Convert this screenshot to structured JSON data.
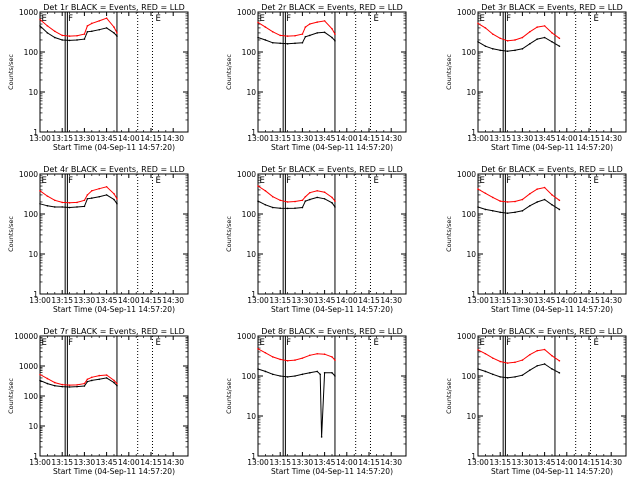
{
  "colors": {
    "events": "#000000",
    "lld": "#ff0000",
    "axis": "#000000",
    "background": "#ffffff"
  },
  "common": {
    "ylabel": "Counts/sec",
    "xlabel": "Start Time (04-Sep-11 14:57:20)",
    "xticks": [
      "13:00",
      "13:15",
      "13:30",
      "13:45",
      "14:00",
      "14:15",
      "14:30"
    ],
    "yscale": "log",
    "xlim_minutes": [
      0,
      100
    ],
    "series_names": [
      "Events",
      "LLD"
    ]
  },
  "chart_data": [
    {
      "type": "line",
      "title": "Det 1r BLACK = Events, RED = LLD",
      "ylim": [
        1,
        1000
      ],
      "yticks": [
        "1",
        "10",
        "100",
        "1000"
      ],
      "markers": {
        "solid": [
          17,
          18.5,
          52
        ],
        "dotted": [
          66,
          76
        ],
        "labels": [
          {
            "text": "E",
            "x": 1
          },
          {
            "text": "F",
            "x": 19
          },
          {
            "text": "E",
            "x": 78
          }
        ]
      },
      "series": [
        {
          "name": "Events",
          "x": [
            0,
            5,
            10,
            15,
            20,
            25,
            30,
            32,
            35,
            40,
            45,
            50,
            52
          ],
          "y": [
            450,
            300,
            230,
            200,
            195,
            200,
            210,
            320,
            330,
            360,
            400,
            300,
            250
          ]
        },
        {
          "name": "LLD",
          "x": [
            0,
            5,
            10,
            15,
            20,
            25,
            30,
            32,
            35,
            40,
            45,
            50,
            52
          ],
          "y": [
            650,
            450,
            330,
            260,
            250,
            255,
            280,
            450,
            520,
            600,
            700,
            420,
            300
          ]
        }
      ]
    },
    {
      "type": "line",
      "title": "Det 2r BLACK = Events, RED = LLD",
      "ylim": [
        1,
        1000
      ],
      "yticks": [
        "1",
        "10",
        "100",
        "1000"
      ],
      "markers": {
        "solid": [
          17,
          18.5,
          52
        ],
        "dotted": [
          66,
          76
        ],
        "labels": [
          {
            "text": "E",
            "x": 1
          },
          {
            "text": "F",
            "x": 19
          },
          {
            "text": "E",
            "x": 78
          }
        ]
      },
      "series": [
        {
          "name": "Events",
          "x": [
            0,
            5,
            10,
            15,
            20,
            25,
            30,
            32,
            35,
            40,
            45,
            50,
            52
          ],
          "y": [
            230,
            200,
            170,
            165,
            160,
            165,
            170,
            240,
            260,
            300,
            310,
            230,
            190
          ]
        },
        {
          "name": "LLD",
          "x": [
            0,
            5,
            10,
            15,
            20,
            25,
            30,
            32,
            35,
            40,
            45,
            50,
            52
          ],
          "y": [
            550,
            420,
            320,
            260,
            250,
            255,
            280,
            420,
            500,
            560,
            600,
            380,
            280
          ]
        }
      ]
    },
    {
      "type": "line",
      "title": "Det 3r BLACK = Events, RED = LLD",
      "ylim": [
        1,
        1000
      ],
      "yticks": [
        "1",
        "10",
        "100",
        "1000"
      ],
      "markers": {
        "solid": [
          17,
          18.5,
          52
        ],
        "dotted": [
          66,
          76
        ],
        "labels": [
          {
            "text": "E",
            "x": 1
          },
          {
            "text": "F",
            "x": 19
          },
          {
            "text": "E",
            "x": 78
          }
        ]
      },
      "series": [
        {
          "name": "Events",
          "x": [
            0,
            5,
            10,
            15,
            20,
            25,
            30,
            35,
            40,
            45,
            50,
            55
          ],
          "y": [
            180,
            140,
            120,
            110,
            105,
            110,
            120,
            160,
            210,
            230,
            180,
            140
          ]
        },
        {
          "name": "LLD",
          "x": [
            0,
            5,
            10,
            15,
            20,
            25,
            30,
            35,
            40,
            45,
            50,
            55
          ],
          "y": [
            520,
            400,
            280,
            220,
            190,
            200,
            230,
            320,
            420,
            450,
            300,
            220
          ]
        }
      ]
    },
    {
      "type": "line",
      "title": "Det 4r BLACK = Events, RED = LLD",
      "ylim": [
        1,
        1000
      ],
      "yticks": [
        "1",
        "10",
        "100",
        "1000"
      ],
      "markers": {
        "solid": [
          17,
          18.5,
          52
        ],
        "dotted": [
          66,
          76
        ],
        "labels": [
          {
            "text": "E",
            "x": 1
          },
          {
            "text": "F",
            "x": 19
          },
          {
            "text": "E",
            "x": 78
          }
        ]
      },
      "series": [
        {
          "name": "Events",
          "x": [
            0,
            5,
            10,
            15,
            20,
            25,
            30,
            32,
            35,
            40,
            45,
            50,
            52
          ],
          "y": [
            180,
            160,
            150,
            150,
            145,
            150,
            155,
            240,
            250,
            270,
            300,
            230,
            180
          ]
        },
        {
          "name": "LLD",
          "x": [
            0,
            5,
            10,
            15,
            20,
            25,
            30,
            32,
            35,
            40,
            45,
            50,
            52
          ],
          "y": [
            380,
            280,
            220,
            195,
            190,
            195,
            220,
            300,
            380,
            430,
            480,
            320,
            240
          ]
        }
      ]
    },
    {
      "type": "line",
      "title": "Det 5r BLACK = Events, RED = LLD",
      "ylim": [
        1,
        1000
      ],
      "yticks": [
        "1",
        "10",
        "100",
        "1000"
      ],
      "markers": {
        "solid": [
          17,
          18.5,
          52
        ],
        "dotted": [
          66,
          76
        ],
        "labels": [
          {
            "text": "E",
            "x": 1
          },
          {
            "text": "F",
            "x": 19
          },
          {
            "text": "E",
            "x": 78
          }
        ]
      },
      "series": [
        {
          "name": "Events",
          "x": [
            0,
            5,
            10,
            15,
            20,
            25,
            30,
            32,
            35,
            40,
            45,
            50,
            52
          ],
          "y": [
            210,
            170,
            145,
            140,
            138,
            140,
            145,
            210,
            230,
            260,
            240,
            190,
            150
          ]
        },
        {
          "name": "LLD",
          "x": [
            0,
            5,
            10,
            15,
            20,
            25,
            30,
            32,
            35,
            40,
            45,
            50,
            52
          ],
          "y": [
            500,
            380,
            270,
            220,
            200,
            205,
            220,
            270,
            340,
            380,
            350,
            260,
            210
          ]
        }
      ]
    },
    {
      "type": "line",
      "title": "Det 6r BLACK = Events, RED = LLD",
      "ylim": [
        1,
        1000
      ],
      "yticks": [
        "1",
        "10",
        "100",
        "1000"
      ],
      "markers": {
        "solid": [
          17,
          18.5,
          52
        ],
        "dotted": [
          66,
          76
        ],
        "labels": [
          {
            "text": "E",
            "x": 1
          },
          {
            "text": "F",
            "x": 19
          },
          {
            "text": "E",
            "x": 78
          }
        ]
      },
      "series": [
        {
          "name": "Events",
          "x": [
            0,
            5,
            10,
            15,
            20,
            25,
            30,
            35,
            40,
            45,
            50,
            55
          ],
          "y": [
            150,
            130,
            120,
            110,
            105,
            110,
            120,
            160,
            200,
            230,
            170,
            130
          ]
        },
        {
          "name": "LLD",
          "x": [
            0,
            5,
            10,
            15,
            20,
            25,
            30,
            35,
            40,
            45,
            50,
            55
          ],
          "y": [
            420,
            330,
            260,
            210,
            200,
            205,
            230,
            320,
            420,
            460,
            300,
            220
          ]
        }
      ]
    },
    {
      "type": "line",
      "title": "Det 7r BLACK = Events, RED = LLD",
      "ylim": [
        1,
        10000
      ],
      "yticks": [
        "1",
        "10",
        "100",
        "1000",
        "10000"
      ],
      "markers": {
        "solid": [
          17,
          18.5,
          52
        ],
        "dotted": [
          66,
          76
        ],
        "labels": [
          {
            "text": "E",
            "x": 1
          },
          {
            "text": "F",
            "x": 19
          },
          {
            "text": "E",
            "x": 78
          }
        ]
      },
      "series": [
        {
          "name": "Events",
          "x": [
            0,
            5,
            10,
            15,
            20,
            25,
            30,
            32,
            35,
            40,
            45,
            50,
            52
          ],
          "y": [
            330,
            260,
            220,
            205,
            200,
            205,
            215,
            300,
            330,
            360,
            400,
            280,
            220
          ]
        },
        {
          "name": "LLD",
          "x": [
            0,
            5,
            10,
            15,
            20,
            25,
            30,
            32,
            35,
            40,
            45,
            50,
            52
          ],
          "y": [
            520,
            380,
            280,
            240,
            230,
            235,
            260,
            360,
            420,
            480,
            500,
            330,
            260
          ]
        }
      ]
    },
    {
      "type": "line",
      "title": "Det 8r BLACK = Events, RED = LLD",
      "ylim": [
        1,
        1000
      ],
      "yticks": [
        "1",
        "10",
        "100",
        "1000"
      ],
      "markers": {
        "solid": [
          17,
          18.5,
          52
        ],
        "dotted": [
          66,
          76
        ],
        "labels": [
          {
            "text": "E",
            "x": 1
          },
          {
            "text": "F",
            "x": 19
          },
          {
            "text": "E",
            "x": 78
          }
        ]
      },
      "series": [
        {
          "name": "Events",
          "x": [
            0,
            5,
            10,
            15,
            20,
            25,
            30,
            35,
            40,
            42,
            43,
            45,
            50,
            52
          ],
          "y": [
            150,
            130,
            110,
            100,
            95,
            100,
            110,
            120,
            130,
            110,
            3,
            120,
            120,
            100
          ]
        },
        {
          "name": "LLD",
          "x": [
            0,
            5,
            10,
            15,
            20,
            25,
            30,
            35,
            40,
            45,
            50,
            52
          ],
          "y": [
            480,
            380,
            300,
            260,
            240,
            250,
            280,
            330,
            360,
            350,
            300,
            250
          ]
        }
      ]
    },
    {
      "type": "line",
      "title": "Det 9r BLACK = Events, RED = LLD",
      "ylim": [
        1,
        1000
      ],
      "yticks": [
        "1",
        "10",
        "100",
        "1000"
      ],
      "markers": {
        "solid": [
          17,
          18.5,
          52
        ],
        "dotted": [
          66,
          76
        ],
        "labels": [
          {
            "text": "E",
            "x": 1
          },
          {
            "text": "F",
            "x": 19
          },
          {
            "text": "E",
            "x": 78
          }
        ]
      },
      "series": [
        {
          "name": "Events",
          "x": [
            0,
            5,
            10,
            15,
            20,
            25,
            30,
            35,
            40,
            45,
            50,
            55
          ],
          "y": [
            150,
            130,
            110,
            95,
            90,
            95,
            105,
            140,
            180,
            200,
            150,
            120
          ]
        },
        {
          "name": "LLD",
          "x": [
            0,
            5,
            10,
            15,
            20,
            25,
            30,
            35,
            40,
            45,
            50,
            55
          ],
          "y": [
            450,
            360,
            280,
            230,
            210,
            220,
            250,
            340,
            430,
            460,
            320,
            240
          ]
        }
      ]
    }
  ]
}
